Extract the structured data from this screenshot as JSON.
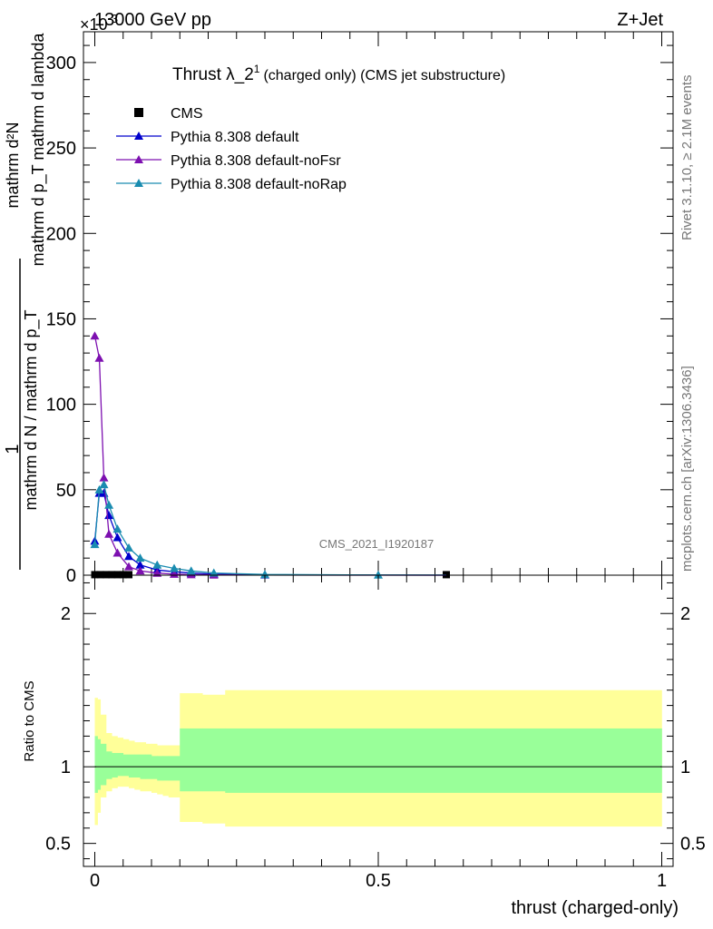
{
  "header": {
    "left": "13000 GeV pp",
    "right": "Z+Jet",
    "exponent": "×10",
    "exponent_power": "-3"
  },
  "side_labels": {
    "rivet": "Rivet 3.1.10, ≥ 2.1M events",
    "mcplots": "mcplots.cern.ch [arXiv:1306.3436]"
  },
  "chart_data": [
    {
      "type": "line",
      "title": "Thrust λ_2",
      "title_superscript": "1",
      "subtitle": "(charged only) (CMS jet substructure)",
      "xlabel": "",
      "ylabel_numerator": "mathrm d²N",
      "ylabel_denominator": "mathrm d p_T mathrm d lambda",
      "ylabel_prefix_num": "1",
      "ylabel_prefix_den": "mathrm d N / mathrm d p_T",
      "watermark": "CMS_2021_I1920187",
      "xlim": [
        -0.02,
        1.02
      ],
      "ylim": [
        0,
        318
      ],
      "yticks": [
        0,
        50,
        100,
        150,
        200,
        250,
        300
      ],
      "legend_position": "top-left",
      "series": [
        {
          "name": "CMS",
          "marker": "square",
          "color": "#000000",
          "points": [
            [
              0.0,
              0.3
            ],
            [
              0.01,
              0.3
            ],
            [
              0.02,
              0.3
            ],
            [
              0.03,
              0.3
            ],
            [
              0.04,
              0.3
            ],
            [
              0.05,
              0.3
            ],
            [
              0.06,
              0.3
            ],
            [
              0.62,
              0.3
            ]
          ]
        },
        {
          "name": "Pythia 8.308 default",
          "marker": "triangle",
          "color": "#0000cc",
          "points": [
            [
              0.0,
              20
            ],
            [
              0.008,
              48
            ],
            [
              0.016,
              48
            ],
            [
              0.025,
              35
            ],
            [
              0.04,
              22
            ],
            [
              0.06,
              11
            ],
            [
              0.08,
              6
            ],
            [
              0.11,
              3
            ],
            [
              0.14,
              2
            ],
            [
              0.17,
              1.2
            ],
            [
              0.21,
              0.6
            ],
            [
              0.3,
              0.2
            ],
            [
              0.5,
              0.05
            ],
            [
              0.62,
              0.02
            ]
          ]
        },
        {
          "name": "Pythia 8.308 default-noFsr",
          "marker": "triangle",
          "color": "#7d10b0",
          "points": [
            [
              0.0,
              140
            ],
            [
              0.008,
              127
            ],
            [
              0.016,
              57
            ],
            [
              0.025,
              24
            ],
            [
              0.04,
              13
            ],
            [
              0.06,
              5
            ],
            [
              0.08,
              2.5
            ],
            [
              0.11,
              1.2
            ],
            [
              0.14,
              0.6
            ],
            [
              0.17,
              0.3
            ],
            [
              0.21,
              0.15
            ],
            [
              0.3,
              0.05
            ],
            [
              0.5,
              0.01
            ],
            [
              0.62,
              0.005
            ]
          ]
        },
        {
          "name": "Pythia 8.308 default-noRap",
          "marker": "triangle",
          "color": "#1a8cb0",
          "points": [
            [
              0.0,
              18
            ],
            [
              0.008,
              50
            ],
            [
              0.016,
              53
            ],
            [
              0.025,
              41
            ],
            [
              0.04,
              27
            ],
            [
              0.06,
              16
            ],
            [
              0.08,
              10
            ],
            [
              0.11,
              6
            ],
            [
              0.14,
              4
            ],
            [
              0.17,
              2.5
            ],
            [
              0.21,
              1.3
            ],
            [
              0.3,
              0.4
            ],
            [
              0.5,
              0.1
            ],
            [
              0.62,
              0.05
            ]
          ]
        }
      ]
    },
    {
      "type": "area",
      "title": "",
      "xlabel": "thrust (charged-only)",
      "ylabel": "Ratio to CMS",
      "xlim": [
        -0.02,
        1.02
      ],
      "ylim": [
        0.35,
        2.25
      ],
      "yticks": [
        0.5,
        1,
        2
      ],
      "xticks": [
        0,
        0.5,
        1
      ],
      "bands": [
        {
          "name": "",
          "color": "#ffff99",
          "edges": [
            0,
            0.005,
            0.01,
            0.02,
            0.03,
            0.04,
            0.05,
            0.06,
            0.07,
            0.08,
            0.09,
            0.1,
            0.11,
            0.12,
            0.13,
            0.15,
            0.19,
            0.23,
            1.0
          ],
          "lo": [
            0.62,
            0.7,
            0.8,
            0.84,
            0.86,
            0.87,
            0.87,
            0.86,
            0.85,
            0.84,
            0.84,
            0.83,
            0.82,
            0.81,
            0.8,
            0.64,
            0.63,
            0.61
          ],
          "hi": [
            1.45,
            1.44,
            1.34,
            1.22,
            1.2,
            1.19,
            1.18,
            1.17,
            1.16,
            1.16,
            1.15,
            1.15,
            1.14,
            1.14,
            1.14,
            1.48,
            1.47,
            1.5
          ]
        },
        {
          "name": "",
          "color": "#99ff99",
          "edges": [
            0,
            0.005,
            0.01,
            0.02,
            0.03,
            0.04,
            0.05,
            0.06,
            0.07,
            0.08,
            0.09,
            0.1,
            0.11,
            0.12,
            0.13,
            0.15,
            0.19,
            0.23,
            1.0
          ],
          "lo": [
            0.83,
            0.85,
            0.88,
            0.92,
            0.93,
            0.94,
            0.94,
            0.93,
            0.93,
            0.92,
            0.92,
            0.92,
            0.91,
            0.91,
            0.91,
            0.84,
            0.84,
            0.83
          ],
          "hi": [
            1.2,
            1.18,
            1.15,
            1.1,
            1.09,
            1.09,
            1.08,
            1.08,
            1.08,
            1.08,
            1.08,
            1.07,
            1.07,
            1.07,
            1.07,
            1.25,
            1.25,
            1.25
          ]
        }
      ],
      "reference_line": 1
    }
  ]
}
